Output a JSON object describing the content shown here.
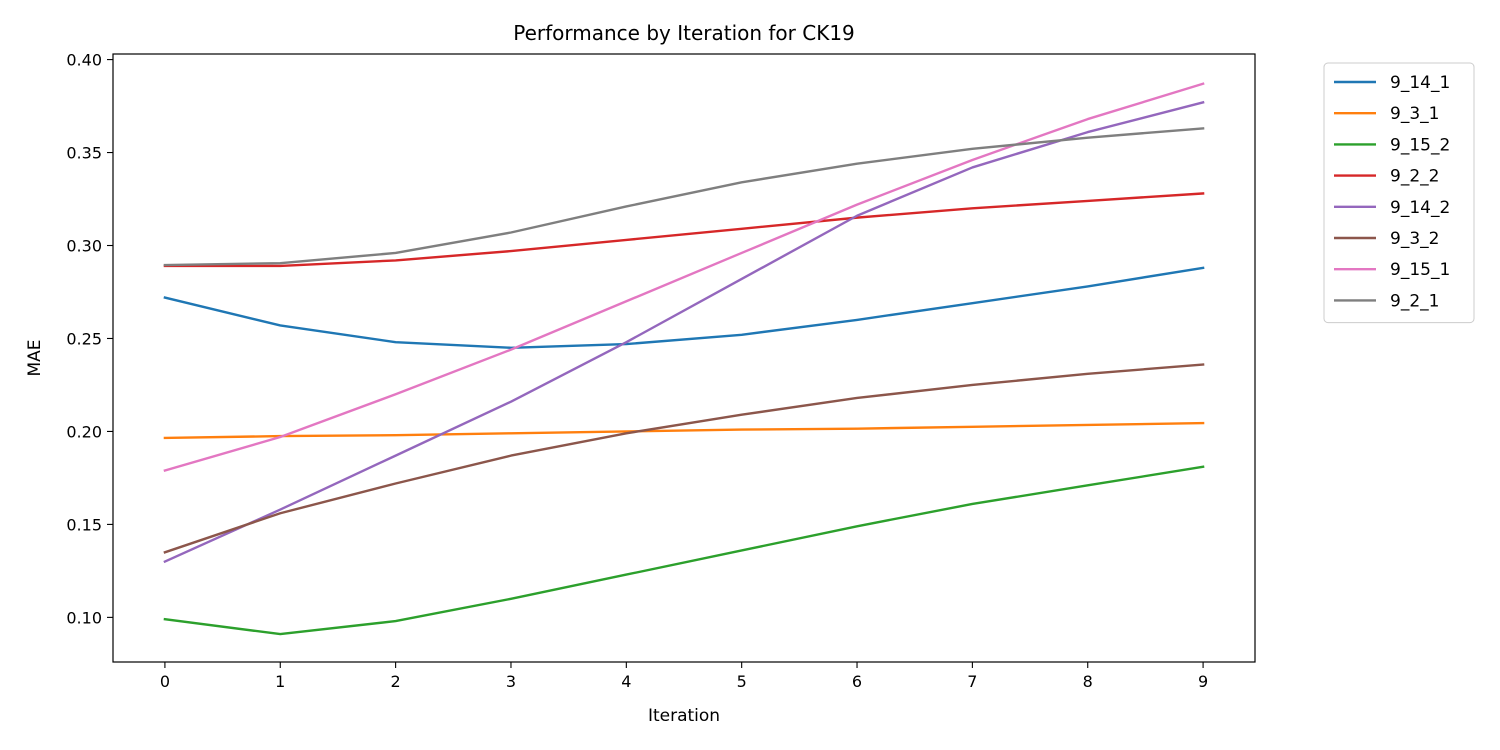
{
  "chart_data": {
    "type": "line",
    "title": "Performance by Iteration for CK19",
    "xlabel": "Iteration",
    "ylabel": "MAE",
    "x": [
      0,
      1,
      2,
      3,
      4,
      5,
      6,
      7,
      8,
      9
    ],
    "xlim": [
      -0.45,
      9.45
    ],
    "ylim": [
      0.076,
      0.403
    ],
    "yticks": [
      0.1,
      0.15,
      0.2,
      0.25,
      0.3,
      0.35,
      0.4
    ],
    "ytick_labels": [
      "0.10",
      "0.15",
      "0.20",
      "0.25",
      "0.30",
      "0.35",
      "0.40"
    ],
    "xtick_labels": [
      "0",
      "1",
      "2",
      "3",
      "4",
      "5",
      "6",
      "7",
      "8",
      "9"
    ],
    "grid": false,
    "legend_position": "outside-top-right",
    "series": [
      {
        "name": "9_14_1",
        "color": "#1f77b4",
        "values": [
          0.272,
          0.257,
          0.248,
          0.245,
          0.247,
          0.252,
          0.26,
          0.269,
          0.278,
          0.288
        ]
      },
      {
        "name": "9_3_1",
        "color": "#ff7f0e",
        "values": [
          0.1965,
          0.1975,
          0.198,
          0.199,
          0.2,
          0.201,
          0.2015,
          0.2025,
          0.2035,
          0.2045
        ]
      },
      {
        "name": "9_15_2",
        "color": "#2ca02c",
        "values": [
          0.099,
          0.091,
          0.098,
          0.11,
          0.123,
          0.136,
          0.149,
          0.161,
          0.171,
          0.181
        ]
      },
      {
        "name": "9_2_2",
        "color": "#d62728",
        "values": [
          0.289,
          0.289,
          0.292,
          0.297,
          0.303,
          0.309,
          0.315,
          0.32,
          0.324,
          0.328
        ]
      },
      {
        "name": "9_14_2",
        "color": "#9467bd",
        "values": [
          0.13,
          0.158,
          0.187,
          0.216,
          0.248,
          0.282,
          0.316,
          0.342,
          0.361,
          0.377
        ]
      },
      {
        "name": "9_3_2",
        "color": "#8c564b",
        "values": [
          0.135,
          0.156,
          0.172,
          0.187,
          0.199,
          0.209,
          0.218,
          0.225,
          0.231,
          0.236
        ]
      },
      {
        "name": "9_15_1",
        "color": "#e377c2",
        "values": [
          0.179,
          0.197,
          0.22,
          0.244,
          0.27,
          0.296,
          0.322,
          0.346,
          0.368,
          0.387
        ]
      },
      {
        "name": "9_2_1",
        "color": "#7f7f7f",
        "values": [
          0.2895,
          0.2905,
          0.296,
          0.307,
          0.321,
          0.334,
          0.344,
          0.352,
          0.358,
          0.363
        ]
      }
    ]
  }
}
